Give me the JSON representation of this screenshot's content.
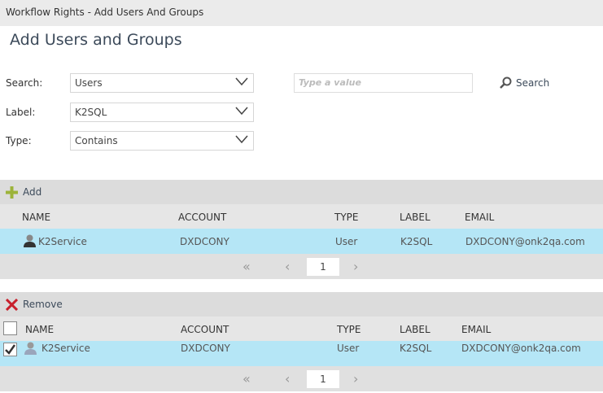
{
  "window_title": "Workflow Rights - Add Users And Groups",
  "page_title": "Add Users and Groups",
  "form": {
    "search_label": "Search:",
    "search_value": "Users",
    "label_label": "Label:",
    "label_value": "K2SQL",
    "type_label": "Type:",
    "type_value": "Contains",
    "value_placeholder": "Type a value",
    "search_button": "Search"
  },
  "results": {
    "add_label": "Add",
    "columns": [
      "NAME",
      "ACCOUNT",
      "TYPE",
      "LABEL",
      "EMAIL"
    ],
    "rows": [
      {
        "name": "K2Service",
        "account": "DXDCONY",
        "type": "User",
        "label": "K2SQL",
        "email": "DXDCONY@onk2qa.com",
        "selected": true
      }
    ],
    "page": "1"
  },
  "selected": {
    "remove_label": "Remove",
    "columns": [
      "NAME",
      "ACCOUNT",
      "TYPE",
      "LABEL",
      "EMAIL"
    ],
    "rows": [
      {
        "name": "K2Service",
        "account": "DXDCONY",
        "type": "User",
        "label": "K2SQL",
        "email": "DXDCONY@onk2qa.com",
        "checked": true
      }
    ],
    "page": "1"
  },
  "colors": {
    "selected_row": "#b5e6f6",
    "add_icon": "#9cb33a",
    "remove_icon": "#c8202c"
  }
}
